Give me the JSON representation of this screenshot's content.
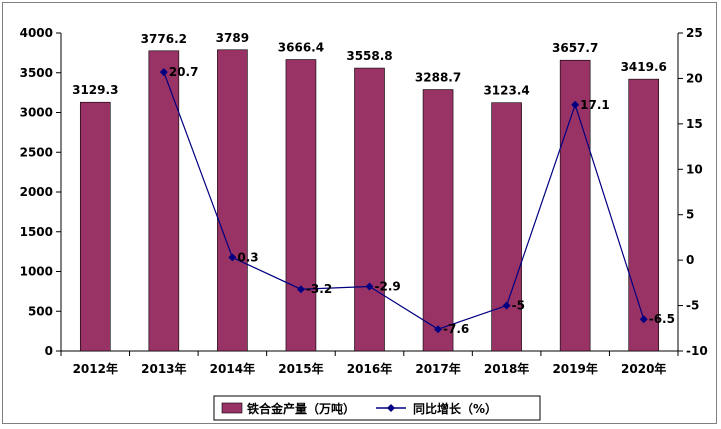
{
  "chart_data": {
    "type": "bar",
    "categories": [
      "2012年",
      "2013年",
      "2014年",
      "2015年",
      "2016年",
      "2017年",
      "2018年",
      "2019年",
      "2020年"
    ],
    "series": [
      {
        "name": "铁合金产量（万吨）",
        "type": "bar",
        "axis": "left",
        "color": "#993366",
        "values": [
          3129.3,
          3776.2,
          3789,
          3666.4,
          3558.8,
          3288.7,
          3123.4,
          3657.7,
          3419.6
        ],
        "labels": [
          "3129.3",
          "3776.2",
          "3789",
          "3666.4",
          "3558.8",
          "3288.7",
          "3123.4",
          "3657.7",
          "3419.6"
        ]
      },
      {
        "name": "同比增长（%）",
        "type": "line",
        "axis": "right",
        "color": "#000080",
        "values": [
          null,
          20.7,
          0.3,
          -3.2,
          -2.9,
          -7.6,
          -5,
          17.1,
          -6.5
        ],
        "labels": [
          "",
          "20.7",
          "0.3",
          "-3.2",
          "-2.9",
          "-7.6",
          "-5",
          "17.1",
          "-6.5"
        ]
      }
    ],
    "y_left": {
      "min": 0,
      "max": 4000,
      "ticks": [
        0,
        500,
        1000,
        1500,
        2000,
        2500,
        3000,
        3500,
        4000
      ]
    },
    "y_right": {
      "min": -10,
      "max": 25,
      "ticks": [
        -10,
        -5,
        0,
        5,
        10,
        15,
        20,
        25
      ]
    },
    "grid": false,
    "legend_position": "bottom"
  }
}
